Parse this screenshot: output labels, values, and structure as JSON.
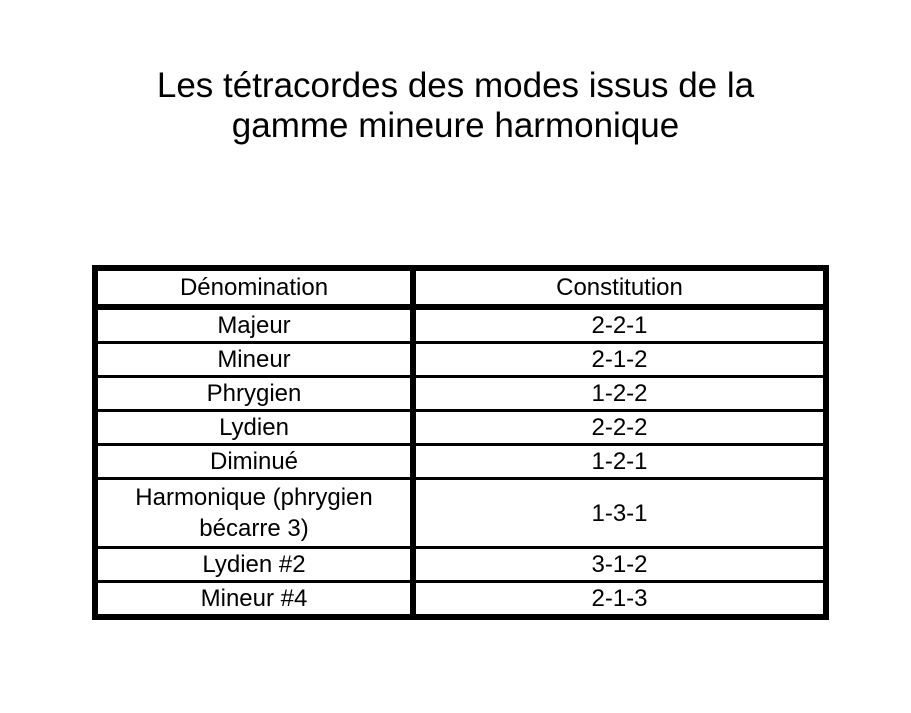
{
  "title": {
    "line1": "Les tétracordes des modes issus de la",
    "line2": "gamme mineure harmonique"
  },
  "table": {
    "headers": [
      "Dénomination",
      "Constitution"
    ],
    "rows": [
      [
        "Majeur",
        "2-2-1"
      ],
      [
        "Mineur",
        "2-1-2"
      ],
      [
        "Phrygien",
        "1-2-2"
      ],
      [
        "Lydien",
        "2-2-2"
      ],
      [
        "Diminué",
        "1-2-1"
      ],
      [
        "Harmonique (phrygien bécarre 3)",
        "1-3-1"
      ],
      [
        "Lydien #2",
        "3-1-2"
      ],
      [
        "Mineur #4",
        "2-1-3"
      ]
    ]
  },
  "colors": {
    "background": "#ffffff",
    "text": "#000000",
    "table_border": "#000000"
  }
}
